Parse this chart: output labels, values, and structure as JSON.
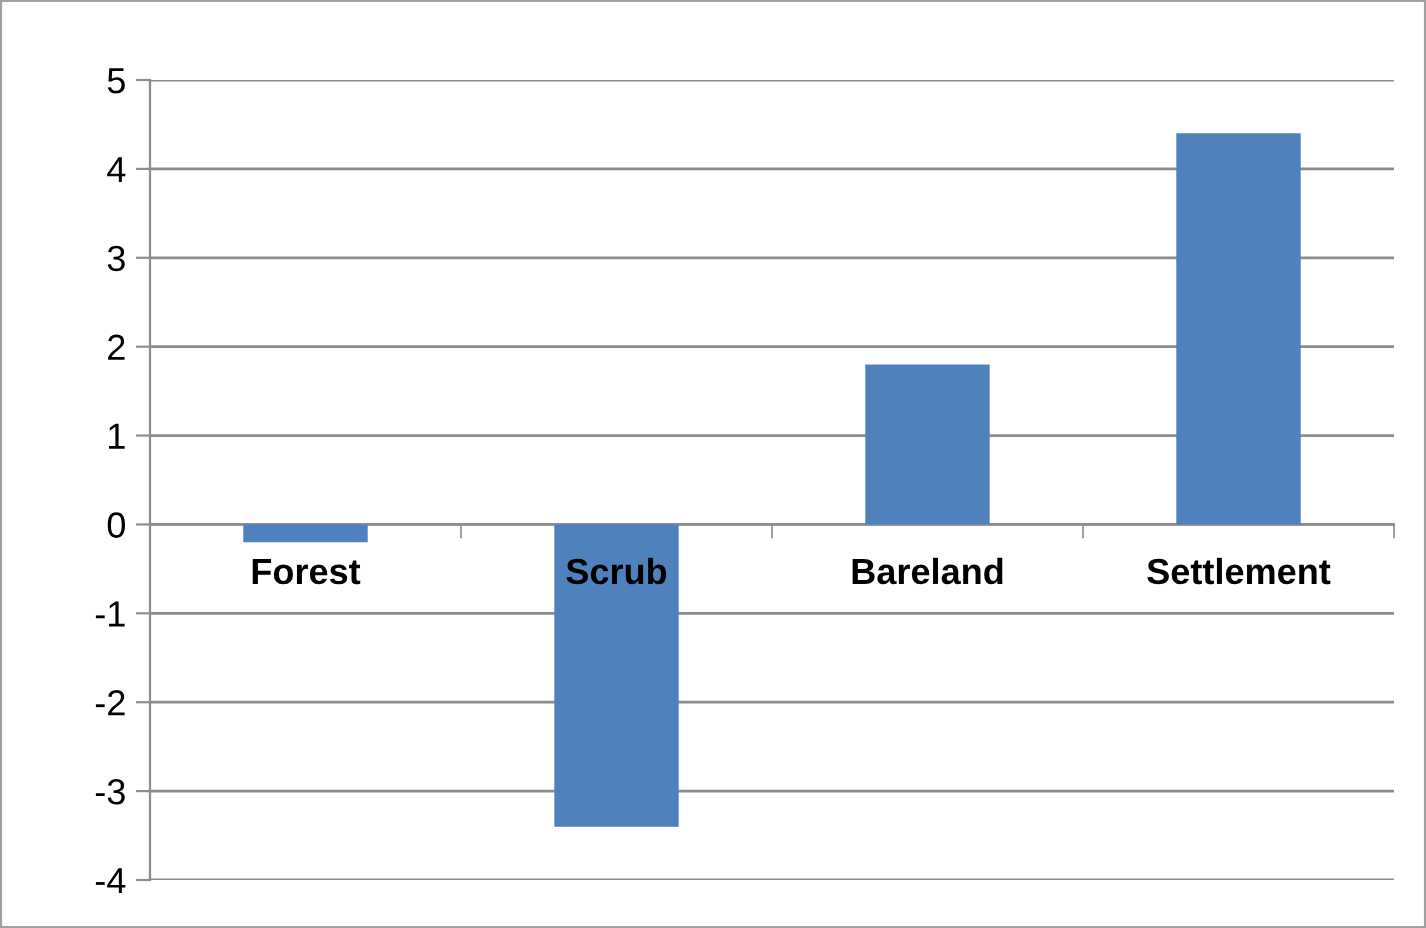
{
  "chart_data": {
    "type": "bar",
    "categories": [
      "Forest",
      "Scrub",
      "Bareland",
      "Settlement"
    ],
    "values": [
      -0.2,
      -3.4,
      1.8,
      4.4
    ],
    "color": "#4f81bd",
    "ylim": [
      -4,
      5
    ],
    "yticks": [
      -4,
      -3,
      -2,
      -1,
      0,
      1,
      2,
      3,
      4,
      5
    ],
    "grid": "y",
    "legend": false
  }
}
